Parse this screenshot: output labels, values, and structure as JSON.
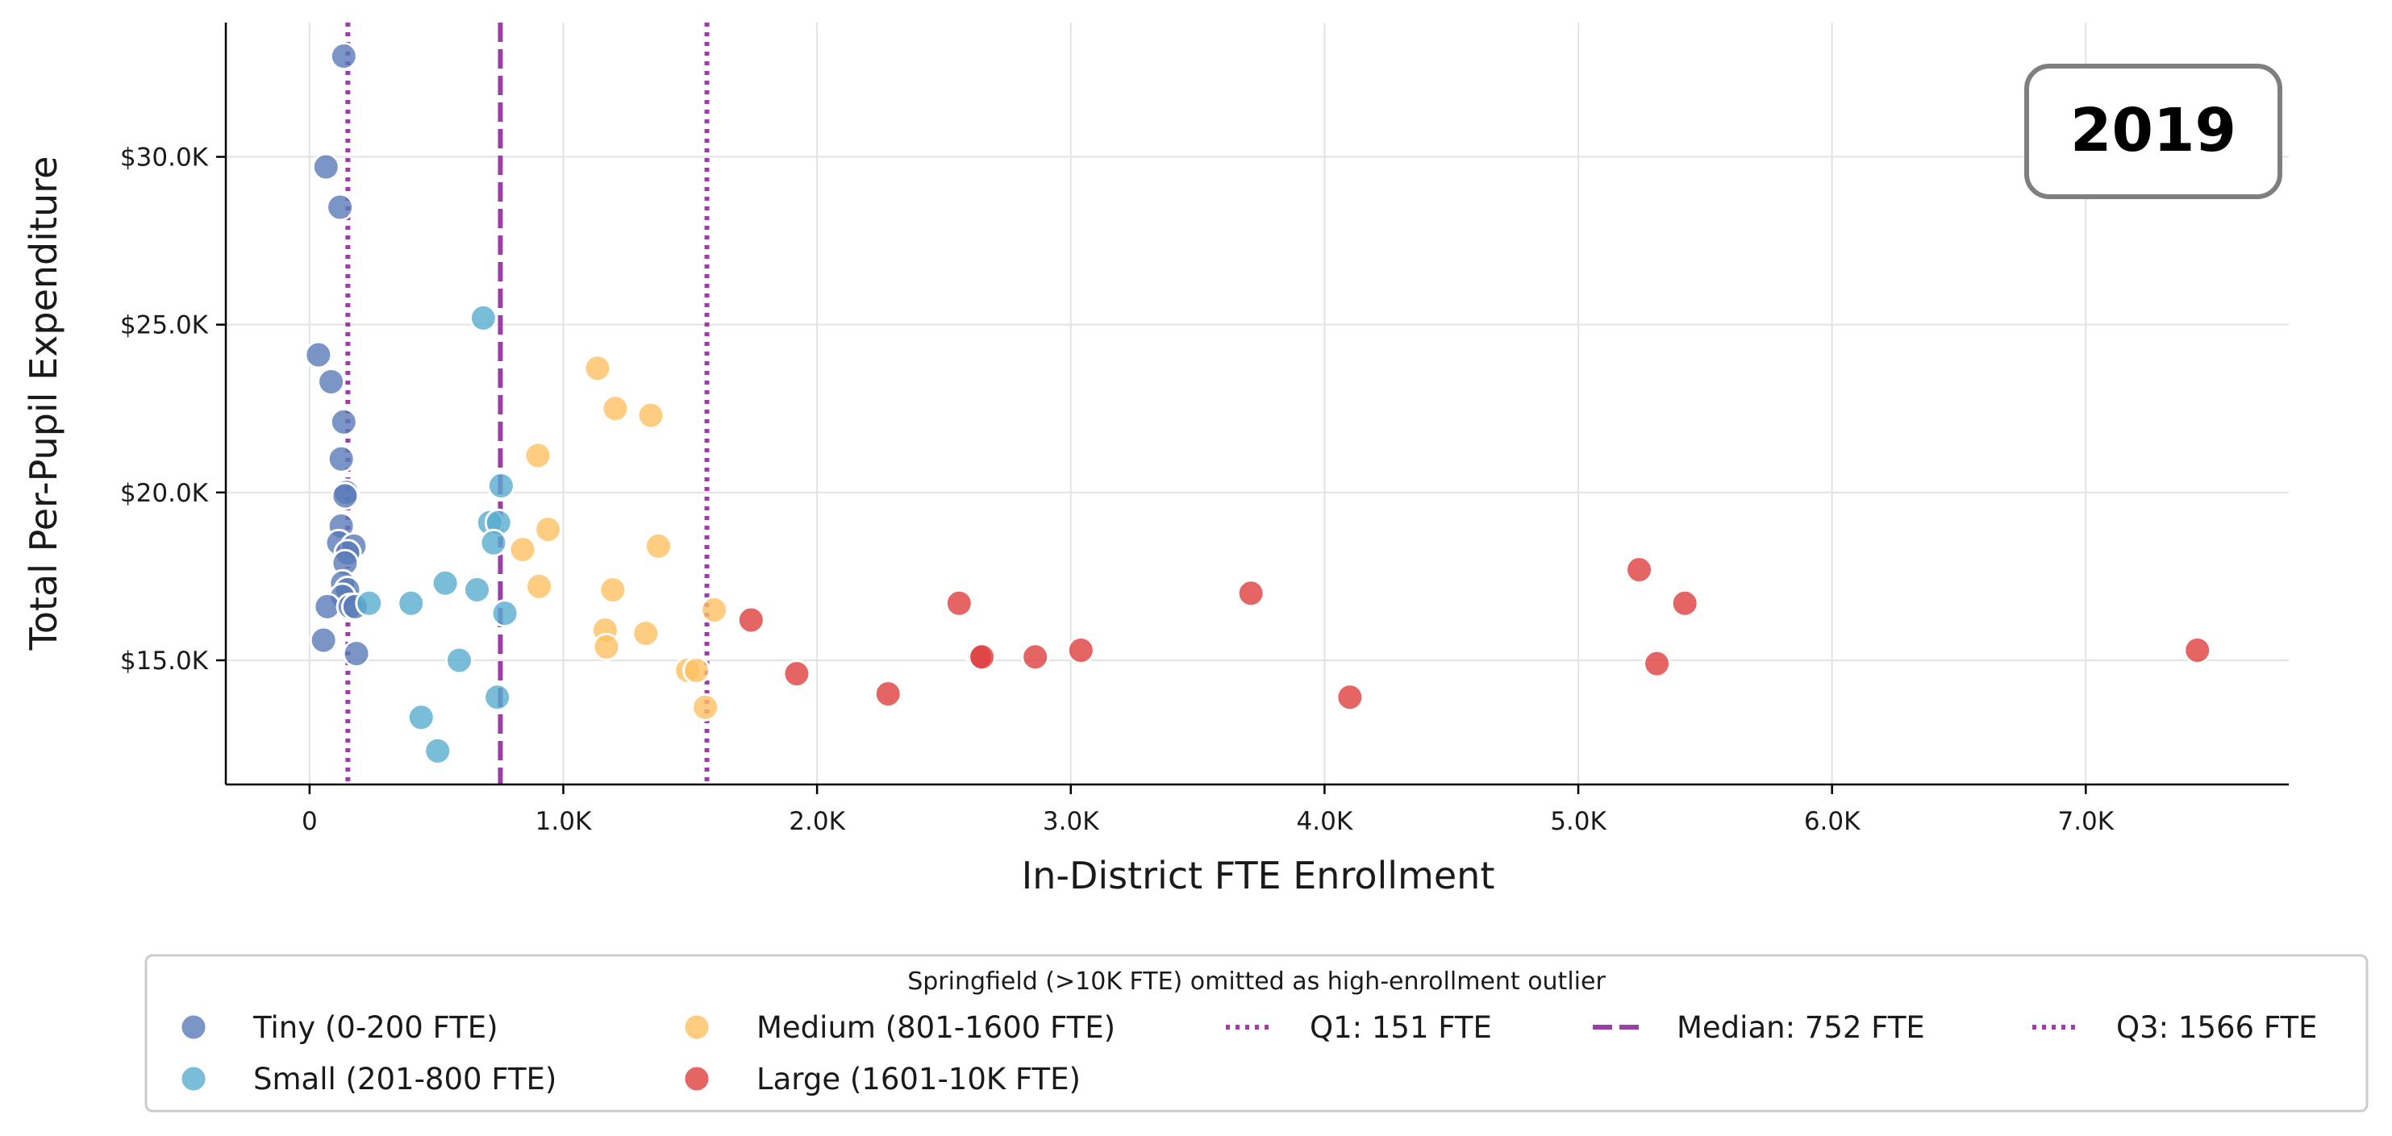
{
  "chart_data": {
    "type": "scatter",
    "title": "",
    "xlabel": "In-District FTE Enrollment",
    "ylabel": "Total Per-Pupil Expenditure",
    "xlim": [
      -330,
      7800
    ],
    "ylim": [
      11300,
      34000
    ],
    "x_ticks": [
      {
        "value": 0,
        "label": "0"
      },
      {
        "value": 1000,
        "label": "1.0K"
      },
      {
        "value": 2000,
        "label": "2.0K"
      },
      {
        "value": 3000,
        "label": "3.0K"
      },
      {
        "value": 4000,
        "label": "4.0K"
      },
      {
        "value": 5000,
        "label": "5.0K"
      },
      {
        "value": 6000,
        "label": "6.0K"
      },
      {
        "value": 7000,
        "label": "7.0K"
      }
    ],
    "y_ticks": [
      {
        "value": 15000,
        "label": "$15.0K"
      },
      {
        "value": 20000,
        "label": "$20.0K"
      },
      {
        "value": 25000,
        "label": "$25.0K"
      },
      {
        "value": 30000,
        "label": "$30.0K"
      }
    ],
    "grid": true,
    "annotation": "2019",
    "legend": {
      "placement": "bottom",
      "title": "Springfield (>10K FTE) omitted as high-enrollment outlier",
      "entries": [
        {
          "label": "Tiny (0-200 FTE)",
          "kind": "marker",
          "color": "#5a7ab8"
        },
        {
          "label": "Small (201-800 FTE)",
          "kind": "marker",
          "color": "#58acd0"
        },
        {
          "label": "Medium (801-1600 FTE)",
          "kind": "marker",
          "color": "#ffc061"
        },
        {
          "label": "Large (1601-10K FTE)",
          "kind": "marker",
          "color": "#df3e3e"
        },
        {
          "label": "Q1: 151 FTE",
          "kind": "line",
          "dash": "dotted",
          "color": "#9b3fa6"
        },
        {
          "label": "Median: 752 FTE",
          "kind": "line",
          "dash": "dashed",
          "color": "#9b3fa6"
        },
        {
          "label": "Q3: 1566 FTE",
          "kind": "line",
          "dash": "dotted",
          "color": "#9b3fa6"
        }
      ]
    },
    "reference_lines": [
      {
        "name": "Q1",
        "x": 151,
        "style": "dotted",
        "color": "#9b3fa6"
      },
      {
        "name": "Median",
        "x": 752,
        "style": "dashed",
        "color": "#9b3fa6"
      },
      {
        "name": "Q3",
        "x": 1566,
        "style": "dotted",
        "color": "#9b3fa6"
      }
    ],
    "series": [
      {
        "name": "Tiny (0-200 FTE)",
        "color": "#5a7ab8",
        "points": [
          [
            135,
            33000
          ],
          [
            65,
            29700
          ],
          [
            120,
            28500
          ],
          [
            35,
            24100
          ],
          [
            85,
            23300
          ],
          [
            135,
            22100
          ],
          [
            125,
            21000
          ],
          [
            145,
            20000
          ],
          [
            140,
            19900
          ],
          [
            125,
            19000
          ],
          [
            115,
            18500
          ],
          [
            175,
            18400
          ],
          [
            150,
            18200
          ],
          [
            140,
            17900
          ],
          [
            130,
            17300
          ],
          [
            150,
            17100
          ],
          [
            130,
            16900
          ],
          [
            70,
            16600
          ],
          [
            160,
            16600
          ],
          [
            180,
            16600
          ],
          [
            55,
            15600
          ],
          [
            185,
            15200
          ]
        ]
      },
      {
        "name": "Small (201-800 FTE)",
        "color": "#58acd0",
        "points": [
          [
            685,
            25200
          ],
          [
            755,
            20200
          ],
          [
            710,
            19100
          ],
          [
            745,
            19100
          ],
          [
            725,
            18500
          ],
          [
            535,
            17300
          ],
          [
            660,
            17100
          ],
          [
            400,
            16700
          ],
          [
            235,
            16700
          ],
          [
            770,
            16400
          ],
          [
            590,
            15000
          ],
          [
            740,
            13900
          ],
          [
            440,
            13300
          ],
          [
            505,
            12300
          ]
        ]
      },
      {
        "name": "Medium (801-1600 FTE)",
        "color": "#ffc061",
        "points": [
          [
            1135,
            23700
          ],
          [
            1205,
            22500
          ],
          [
            1345,
            22300
          ],
          [
            900,
            21100
          ],
          [
            940,
            18900
          ],
          [
            840,
            18300
          ],
          [
            1375,
            18400
          ],
          [
            905,
            17200
          ],
          [
            1195,
            17100
          ],
          [
            1595,
            16500
          ],
          [
            1165,
            15900
          ],
          [
            1325,
            15800
          ],
          [
            1170,
            15400
          ],
          [
            1490,
            14700
          ],
          [
            1525,
            14700
          ],
          [
            1560,
            13600
          ]
        ]
      },
      {
        "name": "Large (1601-10K FTE)",
        "color": "#df3e3e",
        "points": [
          [
            5240,
            17700
          ],
          [
            3710,
            17000
          ],
          [
            5420,
            16700
          ],
          [
            2560,
            16700
          ],
          [
            1740,
            16200
          ],
          [
            3040,
            15300
          ],
          [
            7440,
            15300
          ],
          [
            2640,
            15100
          ],
          [
            2650,
            15100
          ],
          [
            2860,
            15100
          ],
          [
            5310,
            14900
          ],
          [
            1920,
            14600
          ],
          [
            2280,
            14000
          ],
          [
            4100,
            13900
          ]
        ]
      }
    ]
  }
}
